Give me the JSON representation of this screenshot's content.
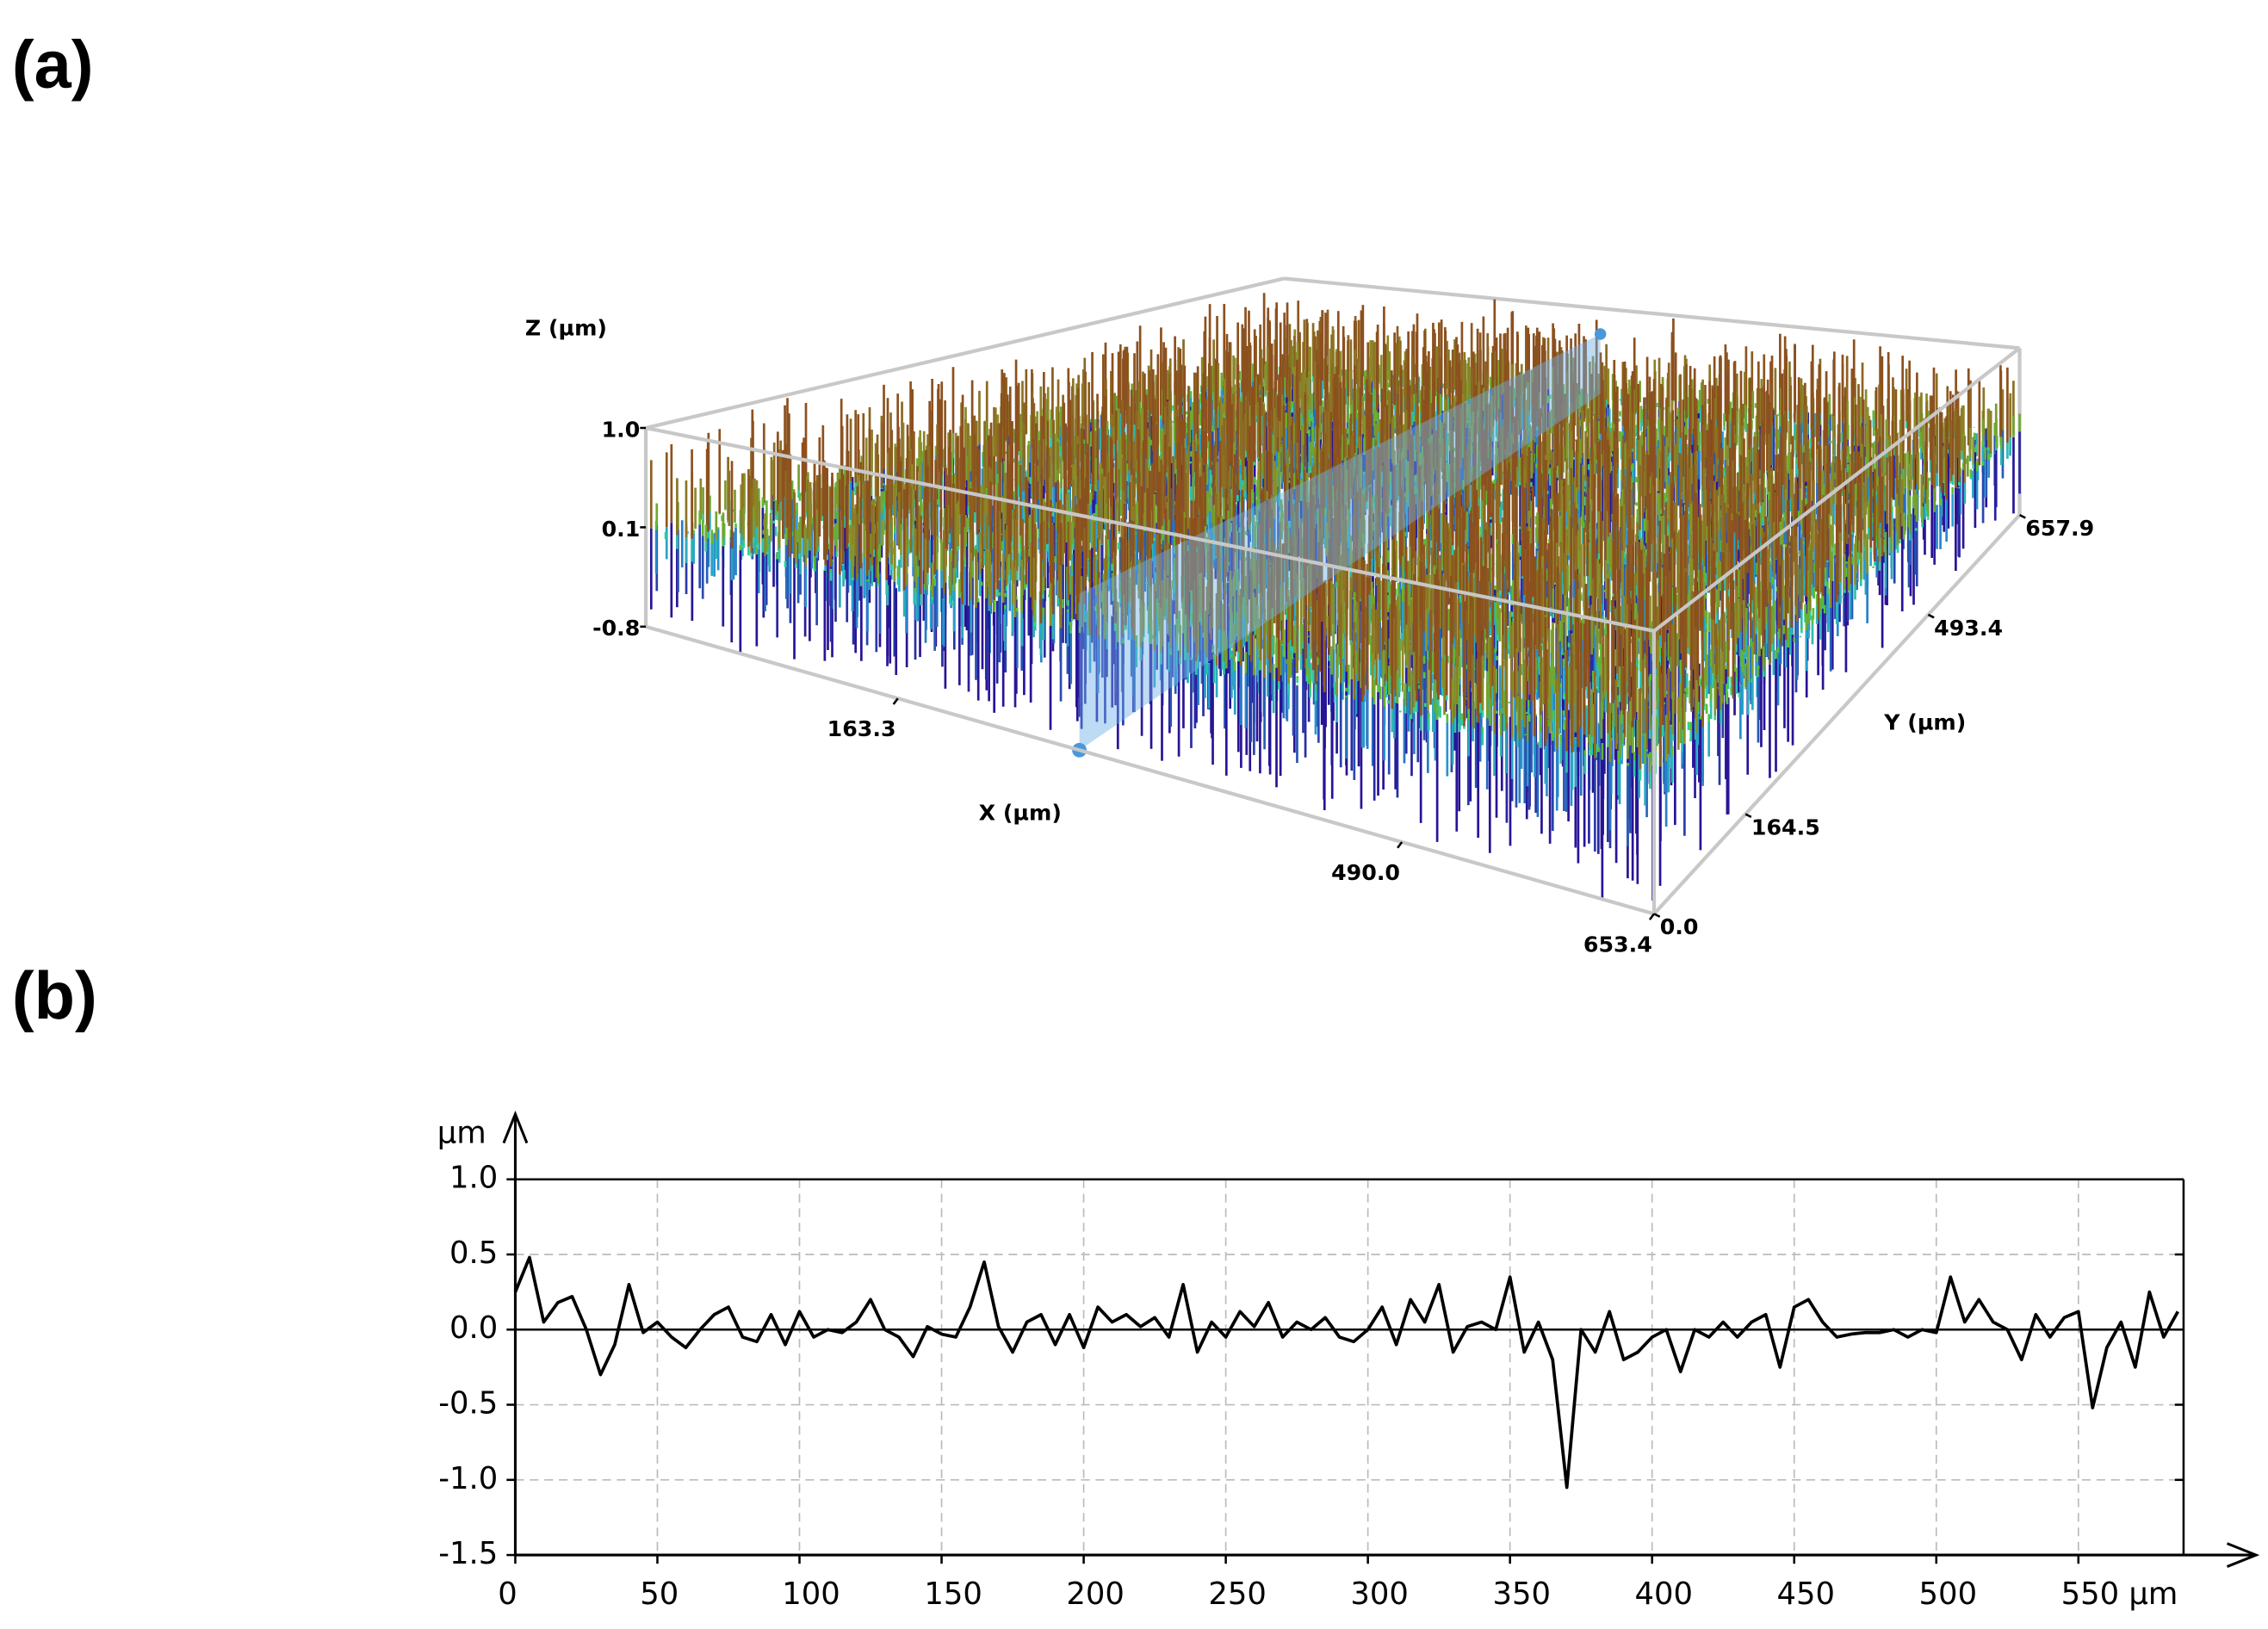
{
  "chart_data": [
    {
      "type": "surface",
      "panel_label": "(a)",
      "xlabel": "X (µm)",
      "ylabel": "Y (µm)",
      "zlabel": "Z (µm)",
      "xlim": [
        0,
        653.4
      ],
      "ylim": [
        0,
        657.9
      ],
      "zlim": [
        -0.8,
        1.0
      ],
      "xticks": [
        163.3,
        {
          "value": 490,
          "label": "490.0"
        },
        653.4
      ],
      "yticks": [
        {
          "value": 0,
          "label": "0.0"
        },
        164.5,
        493.4,
        657.9
      ],
      "zticks": [
        {
          "value": 1,
          "label": "1.0"
        },
        0.1,
        -0.8
      ]
    },
    {
      "type": "line",
      "panel_label": "(b)",
      "ylabel": "µm",
      "color": "#000000",
      "grid": true,
      "xlim": [
        0,
        587
      ],
      "ylim": [
        -1.5,
        1.0
      ],
      "xticks": [
        0,
        50,
        100,
        150,
        200,
        250,
        300,
        350,
        400,
        450,
        500,
        {
          "value": 550,
          "label": "550 µm"
        }
      ],
      "yticks": [
        {
          "value": 1,
          "label": "1.0"
        },
        0.5,
        {
          "value": 0,
          "label": "0.0"
        },
        -0.5,
        {
          "value": -1,
          "label": "-1.0"
        },
        -1.5
      ],
      "x": [
        0,
        5,
        10,
        15,
        20,
        25,
        30,
        35,
        40,
        45,
        50,
        55,
        60,
        65,
        70,
        75,
        80,
        85,
        90,
        95,
        100,
        105,
        110,
        115,
        120,
        125,
        130,
        135,
        140,
        145,
        150,
        155,
        160,
        165,
        170,
        175,
        180,
        185,
        190,
        195,
        200,
        205,
        210,
        215,
        220,
        225,
        230,
        235,
        240,
        245,
        250,
        255,
        260,
        265,
        270,
        275,
        280,
        285,
        290,
        295,
        300,
        305,
        310,
        315,
        320,
        325,
        330,
        335,
        340,
        345,
        350,
        355,
        360,
        365,
        370,
        375,
        380,
        385,
        390,
        395,
        400,
        405,
        410,
        415,
        420,
        425,
        430,
        435,
        440,
        445,
        450,
        455,
        460,
        465,
        470,
        475,
        480,
        485,
        490,
        495,
        500,
        505,
        510,
        515,
        520,
        525,
        530,
        535,
        540,
        545,
        550,
        555,
        560,
        565,
        570,
        575,
        580,
        585
      ],
      "values": [
        0.25,
        0.48,
        0.05,
        0.18,
        0.22,
        0.0,
        -0.3,
        -0.1,
        0.3,
        -0.02,
        0.05,
        -0.05,
        -0.12,
        0.0,
        0.1,
        0.15,
        -0.05,
        -0.08,
        0.1,
        -0.1,
        0.12,
        -0.05,
        0.0,
        -0.02,
        0.05,
        0.2,
        0.0,
        -0.05,
        -0.18,
        0.02,
        -0.03,
        -0.05,
        0.15,
        0.45,
        0.02,
        -0.15,
        0.05,
        0.1,
        -0.1,
        0.1,
        -0.12,
        0.15,
        0.05,
        0.1,
        0.02,
        0.08,
        -0.05,
        0.3,
        -0.15,
        0.05,
        -0.05,
        0.12,
        0.02,
        0.18,
        -0.05,
        0.05,
        0.0,
        0.08,
        -0.05,
        -0.08,
        0.0,
        0.15,
        -0.1,
        0.2,
        0.05,
        0.3,
        -0.15,
        0.02,
        0.05,
        0.0,
        0.35,
        -0.15,
        0.05,
        -0.2,
        -1.05,
        0.0,
        -0.15,
        0.12,
        -0.2,
        -0.15,
        -0.05,
        0.0,
        -0.28,
        0.0,
        -0.05,
        0.05,
        -0.05,
        0.05,
        0.1,
        -0.25,
        0.15,
        0.2,
        0.05,
        -0.05,
        -0.03,
        -0.02,
        -0.02,
        0.0,
        -0.05,
        0.0,
        -0.02,
        0.35,
        0.05,
        0.2,
        0.05,
        0.0,
        -0.2,
        0.1,
        -0.05,
        0.08,
        0.12,
        -0.52,
        -0.12,
        0.05,
        -0.25,
        0.25,
        -0.05,
        0.12
      ]
    }
  ]
}
